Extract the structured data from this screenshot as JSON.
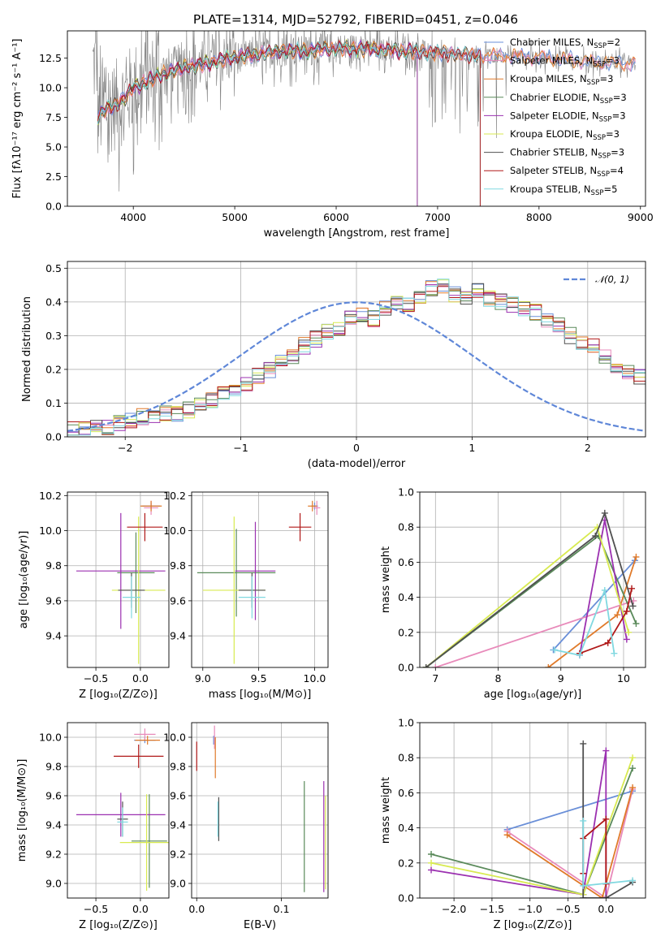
{
  "title": "PLATE=1314, MJD=52792, FIBERID=0451, z=0.046",
  "colors": {
    "Chabrier MILES": "#6a8fd8",
    "Salpeter MILES": "#e88aba",
    "Kroupa MILES": "#e07a2a",
    "Chabrier ELODIE": "#5a8a5a",
    "Salpeter ELODIE": "#9b30b0",
    "Kroupa ELODIE": "#d8ea50",
    "Chabrier STELIB": "#505050",
    "Salpeter STELIB": "#b01818",
    "Kroupa STELIB": "#80d8e0",
    "observed": "#808080",
    "normal": "#5f87d8"
  },
  "chart_data": [
    {
      "id": "spectrum",
      "type": "line",
      "xlabel": "wavelength [Angstrom, rest frame]",
      "ylabel": "Flux [fλ10⁻¹⁷ erg cm⁻² s⁻¹ A⁻¹]",
      "xlim": [
        3350,
        9050
      ],
      "ylim": [
        0,
        14.8
      ],
      "xticks": [
        4000,
        5000,
        6000,
        7000,
        8000,
        9000
      ],
      "yticks": [
        0.0,
        2.5,
        5.0,
        7.5,
        10.0,
        12.5
      ],
      "legend_position": "top-right",
      "legend": [
        {
          "name": "Chabrier MILES",
          "nssp": "2"
        },
        {
          "name": "Salpeter MILES",
          "nssp": "3"
        },
        {
          "name": "Kroupa MILES",
          "nssp": "3"
        },
        {
          "name": "Chabrier ELODIE",
          "nssp": "3"
        },
        {
          "name": "Salpeter ELODIE",
          "nssp": "3"
        },
        {
          "name": "Kroupa ELODIE",
          "nssp": "3"
        },
        {
          "name": "Chabrier STELIB",
          "nssp": "3"
        },
        {
          "name": "Salpeter STELIB",
          "nssp": "4"
        },
        {
          "name": "Kroupa STELIB",
          "nssp": "5"
        }
      ],
      "continuum": {
        "x": [
          3650,
          3700,
          3800,
          3900,
          4000,
          4100,
          4200,
          4300,
          4500,
          4700,
          4900,
          5100,
          5300,
          5500,
          5700,
          5900,
          6100,
          6300,
          6500,
          6700,
          6900,
          7100,
          7300,
          7500,
          7700,
          7900,
          8100,
          8300,
          8500,
          8700,
          8900
        ],
        "y": [
          7.5,
          8.0,
          8.4,
          9.0,
          10.0,
          10.4,
          10.8,
          11.2,
          11.7,
          12.0,
          12.4,
          12.7,
          12.9,
          13.1,
          13.1,
          13.3,
          13.3,
          13.3,
          13.2,
          13.1,
          13.0,
          12.9,
          12.8,
          12.7,
          12.7,
          12.6,
          12.5,
          12.4,
          12.2,
          12.1,
          12.0
        ]
      },
      "model_ranges": {
        "Chabrier MILES": [
          3650,
          8950
        ],
        "Salpeter MILES": [
          3650,
          8950
        ],
        "Kroupa MILES": [
          3650,
          8950
        ],
        "Chabrier ELODIE": [
          3650,
          6800
        ],
        "Salpeter ELODIE": [
          3650,
          6800
        ],
        "Kroupa ELODIE": [
          3650,
          6800
        ],
        "Chabrier STELIB": [
          3650,
          7420
        ],
        "Salpeter STELIB": [
          3650,
          7420
        ],
        "Kroupa STELIB": [
          3650,
          7420
        ]
      },
      "observed_range": [
        3600,
        8950
      ]
    },
    {
      "id": "residuals",
      "type": "histogram",
      "xlabel": "(data-model)/error",
      "ylabel": "Normed distribution",
      "xlim": [
        -2.5,
        2.5
      ],
      "ylim": [
        0,
        0.52
      ],
      "xticks": [
        -2,
        -1,
        0,
        1,
        2
      ],
      "yticks": [
        0.0,
        0.1,
        0.2,
        0.3,
        0.4,
        0.5
      ],
      "normal_label": "𝒩(0, 1)",
      "bin_width": 0.1,
      "bin_start": -2.5,
      "base_heights": [
        0.02,
        0.02,
        0.03,
        0.03,
        0.04,
        0.05,
        0.06,
        0.06,
        0.07,
        0.07,
        0.08,
        0.1,
        0.11,
        0.13,
        0.14,
        0.16,
        0.18,
        0.2,
        0.22,
        0.24,
        0.27,
        0.29,
        0.31,
        0.32,
        0.35,
        0.36,
        0.35,
        0.38,
        0.4,
        0.39,
        0.42,
        0.44,
        0.45,
        0.42,
        0.41,
        0.43,
        0.41,
        0.4,
        0.39,
        0.38,
        0.37,
        0.35,
        0.33,
        0.3,
        0.28,
        0.27,
        0.24,
        0.21,
        0.19,
        0.18,
        0.16,
        0.15,
        0.13,
        0.11,
        0.1,
        0.09,
        0.07,
        0.06,
        0.06,
        0.04,
        0.04,
        0.04,
        0.03,
        0.02,
        0.02,
        0.03,
        0.02,
        0.02,
        0.02,
        0.02
      ]
    },
    {
      "id": "age_vs_Z",
      "type": "scatter",
      "xlabel": "Z [log₁₀(Z/Z⊙)]",
      "ylabel": "age  [log₁₀(age/yr)]",
      "xlim": [
        -0.82,
        0.32
      ],
      "ylim": [
        9.22,
        10.22
      ],
      "xticks": [
        -0.5,
        0.0
      ],
      "yticks": [
        9.4,
        9.6,
        9.8,
        10.0,
        10.2
      ],
      "points": [
        {
          "series": "Chabrier MILES",
          "x": 0.12,
          "y": 10.14,
          "xerr": 0.1,
          "yerr": 0.02
        },
        {
          "series": "Salpeter MILES",
          "x": 0.12,
          "y": 10.13,
          "xerr": 0.08,
          "yerr": 0.04
        },
        {
          "series": "Kroupa MILES",
          "x": 0.12,
          "y": 10.14,
          "xerr": 0.12,
          "yerr": 0.03
        },
        {
          "series": "Chabrier ELODIE",
          "x": -0.05,
          "y": 9.76,
          "xerr": 0.21,
          "yerr": 0.23
        },
        {
          "series": "Salpeter ELODIE",
          "x": -0.22,
          "y": 9.77,
          "xerr": 0.5,
          "yerr": 0.33
        },
        {
          "series": "Kroupa ELODIE",
          "x": -0.02,
          "y": 9.66,
          "xerr": 0.3,
          "yerr": 0.42
        },
        {
          "series": "Chabrier STELIB",
          "x": -0.1,
          "y": 9.66,
          "xerr": 0.15,
          "yerr": 0.1
        },
        {
          "series": "Salpeter STELIB",
          "x": 0.05,
          "y": 10.02,
          "xerr": 0.2,
          "yerr": 0.08
        },
        {
          "series": "Kroupa STELIB",
          "x": -0.1,
          "y": 9.62,
          "xerr": 0.1,
          "yerr": 0.12
        }
      ]
    },
    {
      "id": "age_vs_mass",
      "type": "scatter",
      "xlabel": "mass [log₁₀(M/M⊙)]",
      "ylabel": "",
      "xlim": [
        8.9,
        10.12
      ],
      "ylim": [
        9.22,
        10.22
      ],
      "xticks": [
        9.0,
        9.5,
        10.0
      ],
      "yticks": [
        9.4,
        9.6,
        9.8,
        10.0,
        10.2
      ],
      "points": [
        {
          "series": "Chabrier MILES",
          "x": 10.0,
          "y": 10.14,
          "xerr": 0.03,
          "yerr": 0.02
        },
        {
          "series": "Salpeter MILES",
          "x": 10.02,
          "y": 10.13,
          "xerr": 0.03,
          "yerr": 0.04
        },
        {
          "series": "Kroupa MILES",
          "x": 9.98,
          "y": 10.14,
          "xerr": 0.04,
          "yerr": 0.03
        },
        {
          "series": "Chabrier ELODIE",
          "x": 9.3,
          "y": 9.76,
          "xerr": 0.35,
          "yerr": 0.25
        },
        {
          "series": "Salpeter ELODIE",
          "x": 9.47,
          "y": 9.77,
          "xerr": 0.18,
          "yerr": 0.28
        },
        {
          "series": "Kroupa ELODIE",
          "x": 9.28,
          "y": 9.66,
          "xerr": 0.28,
          "yerr": 0.42
        },
        {
          "series": "Chabrier STELIB",
          "x": 9.44,
          "y": 9.66,
          "xerr": 0.12,
          "yerr": 0.1
        },
        {
          "series": "Salpeter STELIB",
          "x": 9.87,
          "y": 10.02,
          "xerr": 0.1,
          "yerr": 0.08
        },
        {
          "series": "Kroupa STELIB",
          "x": 9.44,
          "y": 9.62,
          "xerr": 0.12,
          "yerr": 0.12
        }
      ]
    },
    {
      "id": "weight_vs_age",
      "type": "line",
      "xlabel": "age  [log₁₀(age/yr)]",
      "ylabel": "mass weight",
      "xlim": [
        6.75,
        10.35
      ],
      "ylim": [
        0,
        1.0
      ],
      "xticks": [
        7,
        8,
        9,
        10
      ],
      "yticks": [
        0.0,
        0.2,
        0.4,
        0.6,
        0.8,
        1.0
      ],
      "series": [
        {
          "name": "Chabrier MILES",
          "x": [
            8.88,
            10.18
          ],
          "y": [
            0.1,
            0.61
          ]
        },
        {
          "name": "Salpeter MILES",
          "x": [
            7.0,
            10.16
          ],
          "y": [
            0.0,
            0.38
          ]
        },
        {
          "name": "Kroupa MILES",
          "x": [
            8.8,
            9.9,
            10.2
          ],
          "y": [
            0.0,
            0.3,
            0.63
          ]
        },
        {
          "name": "Chabrier ELODIE",
          "x": [
            6.85,
            9.6,
            10.2
          ],
          "y": [
            0.0,
            0.75,
            0.25
          ]
        },
        {
          "name": "Salpeter ELODIE",
          "x": [
            9.3,
            9.7,
            10.05
          ],
          "y": [
            0.07,
            0.84,
            0.16
          ]
        },
        {
          "name": "Kroupa ELODIE",
          "x": [
            6.85,
            9.58,
            10.08
          ],
          "y": [
            0.0,
            0.8,
            0.2
          ]
        },
        {
          "name": "Chabrier STELIB",
          "x": [
            6.85,
            9.55,
            9.7,
            10.15
          ],
          "y": [
            0.0,
            0.75,
            0.88,
            0.35
          ]
        },
        {
          "name": "Salpeter STELIB",
          "x": [
            9.3,
            9.75,
            10.05,
            10.13
          ],
          "y": [
            0.08,
            0.14,
            0.32,
            0.45
          ]
        },
        {
          "name": "Kroupa STELIB",
          "x": [
            8.9,
            9.3,
            9.7,
            9.85
          ],
          "y": [
            0.1,
            0.07,
            0.44,
            0.08
          ]
        }
      ]
    },
    {
      "id": "mass_vs_Z",
      "type": "scatter",
      "xlabel": "Z [log₁₀(Z/Z⊙)]",
      "ylabel": "mass [log₁₀(M/M⊙)]",
      "xlim": [
        -0.82,
        0.32
      ],
      "ylim": [
        8.9,
        10.1
      ],
      "xticks": [
        -0.5,
        0.0
      ],
      "yticks": [
        9.0,
        9.2,
        9.4,
        9.6,
        9.8,
        10.0
      ],
      "points": [
        {
          "series": "Chabrier MILES",
          "x": 0.05,
          "y": 9.98,
          "xerr": 0.12,
          "yerr": 0.02
        },
        {
          "series": "Salpeter MILES",
          "x": 0.05,
          "y": 10.02,
          "xerr": 0.12,
          "yerr": 0.04
        },
        {
          "series": "Kroupa MILES",
          "x": 0.08,
          "y": 9.98,
          "xerr": 0.14,
          "yerr": 0.03
        },
        {
          "series": "Chabrier ELODIE",
          "x": 0.1,
          "y": 9.29,
          "xerr": 0.2,
          "yerr": 0.32
        },
        {
          "series": "Salpeter ELODIE",
          "x": -0.22,
          "y": 9.47,
          "xerr": 0.5,
          "yerr": 0.15
        },
        {
          "series": "Kroupa ELODIE",
          "x": 0.07,
          "y": 9.28,
          "xerr": 0.3,
          "yerr": 0.33
        },
        {
          "series": "Chabrier STELIB",
          "x": -0.2,
          "y": 9.44,
          "xerr": 0.06,
          "yerr": 0.12
        },
        {
          "series": "Salpeter STELIB",
          "x": -0.02,
          "y": 9.87,
          "xerr": 0.28,
          "yerr": 0.08
        },
        {
          "series": "Kroupa STELIB",
          "x": -0.2,
          "y": 9.42,
          "xerr": 0.06,
          "yerr": 0.1
        }
      ]
    },
    {
      "id": "mass_vs_ebv",
      "type": "scatter",
      "xlabel": "E(B-V)",
      "ylabel": "",
      "xlim": [
        -0.006,
        0.155
      ],
      "ylim": [
        8.9,
        10.1
      ],
      "xticks": [
        0.0,
        0.1
      ],
      "yticks": [
        9.0,
        9.2,
        9.4,
        9.6,
        9.8,
        10.0
      ],
      "points": [
        {
          "series": "Chabrier MILES",
          "x": 0.02,
          "y": 9.98,
          "xerr": 0,
          "yerr": 0.03
        },
        {
          "series": "Salpeter MILES",
          "x": 0.021,
          "y": 10.0,
          "xerr": 0,
          "yerr": 0.08
        },
        {
          "series": "Kroupa MILES",
          "x": 0.022,
          "y": 9.86,
          "xerr": 0,
          "yerr": 0.14
        },
        {
          "series": "Chabrier ELODIE",
          "x": 0.127,
          "y": 9.32,
          "xerr": 0,
          "yerr": 0.38
        },
        {
          "series": "Salpeter ELODIE",
          "x": 0.15,
          "y": 9.32,
          "xerr": 0,
          "yerr": 0.38
        },
        {
          "series": "Kroupa ELODIE",
          "x": 0.152,
          "y": 9.28,
          "xerr": 0,
          "yerr": 0.32
        },
        {
          "series": "Chabrier STELIB",
          "x": 0.026,
          "y": 9.44,
          "xerr": 0,
          "yerr": 0.15
        },
        {
          "series": "Salpeter STELIB",
          "x": 0.0,
          "y": 9.87,
          "xerr": 0,
          "yerr": 0.1
        },
        {
          "series": "Kroupa STELIB",
          "x": 0.025,
          "y": 9.44,
          "xerr": 0,
          "yerr": 0.12
        }
      ]
    },
    {
      "id": "weight_vs_Z",
      "type": "line",
      "xlabel": "Z [log₁₀(Z/Z⊙)]",
      "ylabel": "mass weight",
      "xlim": [
        -2.45,
        0.52
      ],
      "ylim": [
        0,
        1.0
      ],
      "xticks": [
        -2.0,
        -1.5,
        -1.0,
        -0.5,
        0.0
      ],
      "yticks": [
        0.0,
        0.2,
        0.4,
        0.6,
        0.8,
        1.0
      ],
      "series": [
        {
          "name": "Chabrier MILES",
          "x": [
            -1.3,
            0.35
          ],
          "y": [
            0.39,
            0.61
          ]
        },
        {
          "name": "Salpeter MILES",
          "x": [
            -1.3,
            0.0,
            0.35
          ],
          "y": [
            0.38,
            0.0,
            0.62
          ]
        },
        {
          "name": "Kroupa MILES",
          "x": [
            -1.3,
            -0.05,
            0.35
          ],
          "y": [
            0.36,
            0.0,
            0.63
          ]
        },
        {
          "name": "Chabrier ELODIE",
          "x": [
            -2.3,
            -0.3,
            0.35
          ],
          "y": [
            0.25,
            0.02,
            0.74
          ]
        },
        {
          "name": "Salpeter ELODIE",
          "x": [
            -2.3,
            -0.3,
            0.0,
            0.0
          ],
          "y": [
            0.16,
            0.02,
            0.84,
            0.0
          ]
        },
        {
          "name": "Kroupa ELODIE",
          "x": [
            -2.3,
            -0.3,
            0.35
          ],
          "y": [
            0.2,
            0.02,
            0.8
          ]
        },
        {
          "name": "Chabrier STELIB",
          "x": [
            -0.3,
            -0.3,
            0.0,
            0.35
          ],
          "y": [
            0.88,
            0.0,
            0.0,
            0.09
          ]
        },
        {
          "name": "Salpeter STELIB",
          "x": [
            -0.3,
            -0.3,
            0.0,
            0.0
          ],
          "y": [
            0.14,
            0.34,
            0.45,
            0.08
          ]
        },
        {
          "name": "Kroupa STELIB",
          "x": [
            -0.3,
            -0.3,
            0.35
          ],
          "y": [
            0.44,
            0.07,
            0.1
          ]
        }
      ]
    }
  ]
}
